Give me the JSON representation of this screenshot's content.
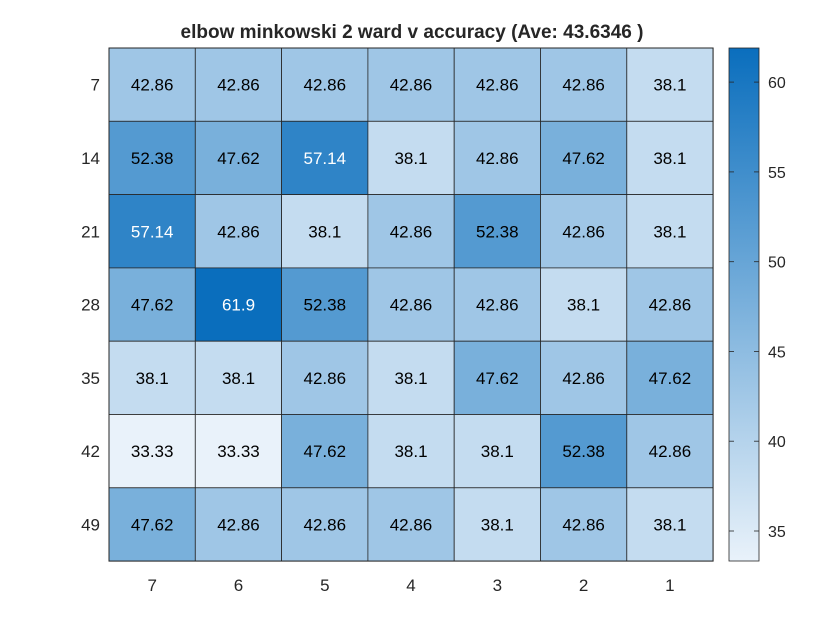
{
  "chart_data": {
    "type": "heatmap",
    "title": "elbow minkowski 2 ward v accuracy (Ave:  43.6346 )",
    "xlabel": "",
    "ylabel": "",
    "x_categories": [
      "7",
      "6",
      "5",
      "4",
      "3",
      "2",
      "1"
    ],
    "y_categories": [
      "7",
      "14",
      "21",
      "28",
      "35",
      "42",
      "49"
    ],
    "values": [
      [
        42.86,
        42.86,
        42.86,
        42.86,
        42.86,
        42.86,
        38.1
      ],
      [
        52.38,
        47.62,
        57.14,
        38.1,
        42.86,
        47.62,
        38.1
      ],
      [
        57.14,
        42.86,
        38.1,
        42.86,
        52.38,
        42.86,
        38.1
      ],
      [
        47.62,
        61.9,
        52.38,
        42.86,
        42.86,
        38.1,
        42.86
      ],
      [
        38.1,
        38.1,
        42.86,
        38.1,
        47.62,
        42.86,
        47.62
      ],
      [
        33.33,
        33.33,
        47.62,
        38.1,
        38.1,
        52.38,
        42.86
      ],
      [
        47.62,
        42.86,
        42.86,
        42.86,
        38.1,
        42.86,
        38.1
      ]
    ],
    "value_labels": [
      [
        "42.86",
        "42.86",
        "42.86",
        "42.86",
        "42.86",
        "42.86",
        "38.1"
      ],
      [
        "52.38",
        "47.62",
        "57.14",
        "38.1",
        "42.86",
        "47.62",
        "38.1"
      ],
      [
        "57.14",
        "42.86",
        "38.1",
        "42.86",
        "52.38",
        "42.86",
        "38.1"
      ],
      [
        "47.62",
        "61.9",
        "52.38",
        "42.86",
        "42.86",
        "38.1",
        "42.86"
      ],
      [
        "38.1",
        "38.1",
        "42.86",
        "38.1",
        "47.62",
        "42.86",
        "47.62"
      ],
      [
        "33.33",
        "33.33",
        "47.62",
        "38.1",
        "38.1",
        "52.38",
        "42.86"
      ],
      [
        "47.62",
        "42.86",
        "42.86",
        "42.86",
        "38.1",
        "42.86",
        "38.1"
      ]
    ],
    "colorbar": {
      "range": [
        33.33,
        61.9
      ],
      "ticks": [
        35,
        40,
        45,
        50,
        55,
        60
      ],
      "tick_labels": [
        "35",
        "40",
        "45",
        "50",
        "55",
        "60"
      ],
      "color_low": "#e9f2fa",
      "color_high": "#0a6ebd"
    },
    "label_color_dark": "#000000",
    "label_color_light": "#ffffff",
    "grid": true
  }
}
